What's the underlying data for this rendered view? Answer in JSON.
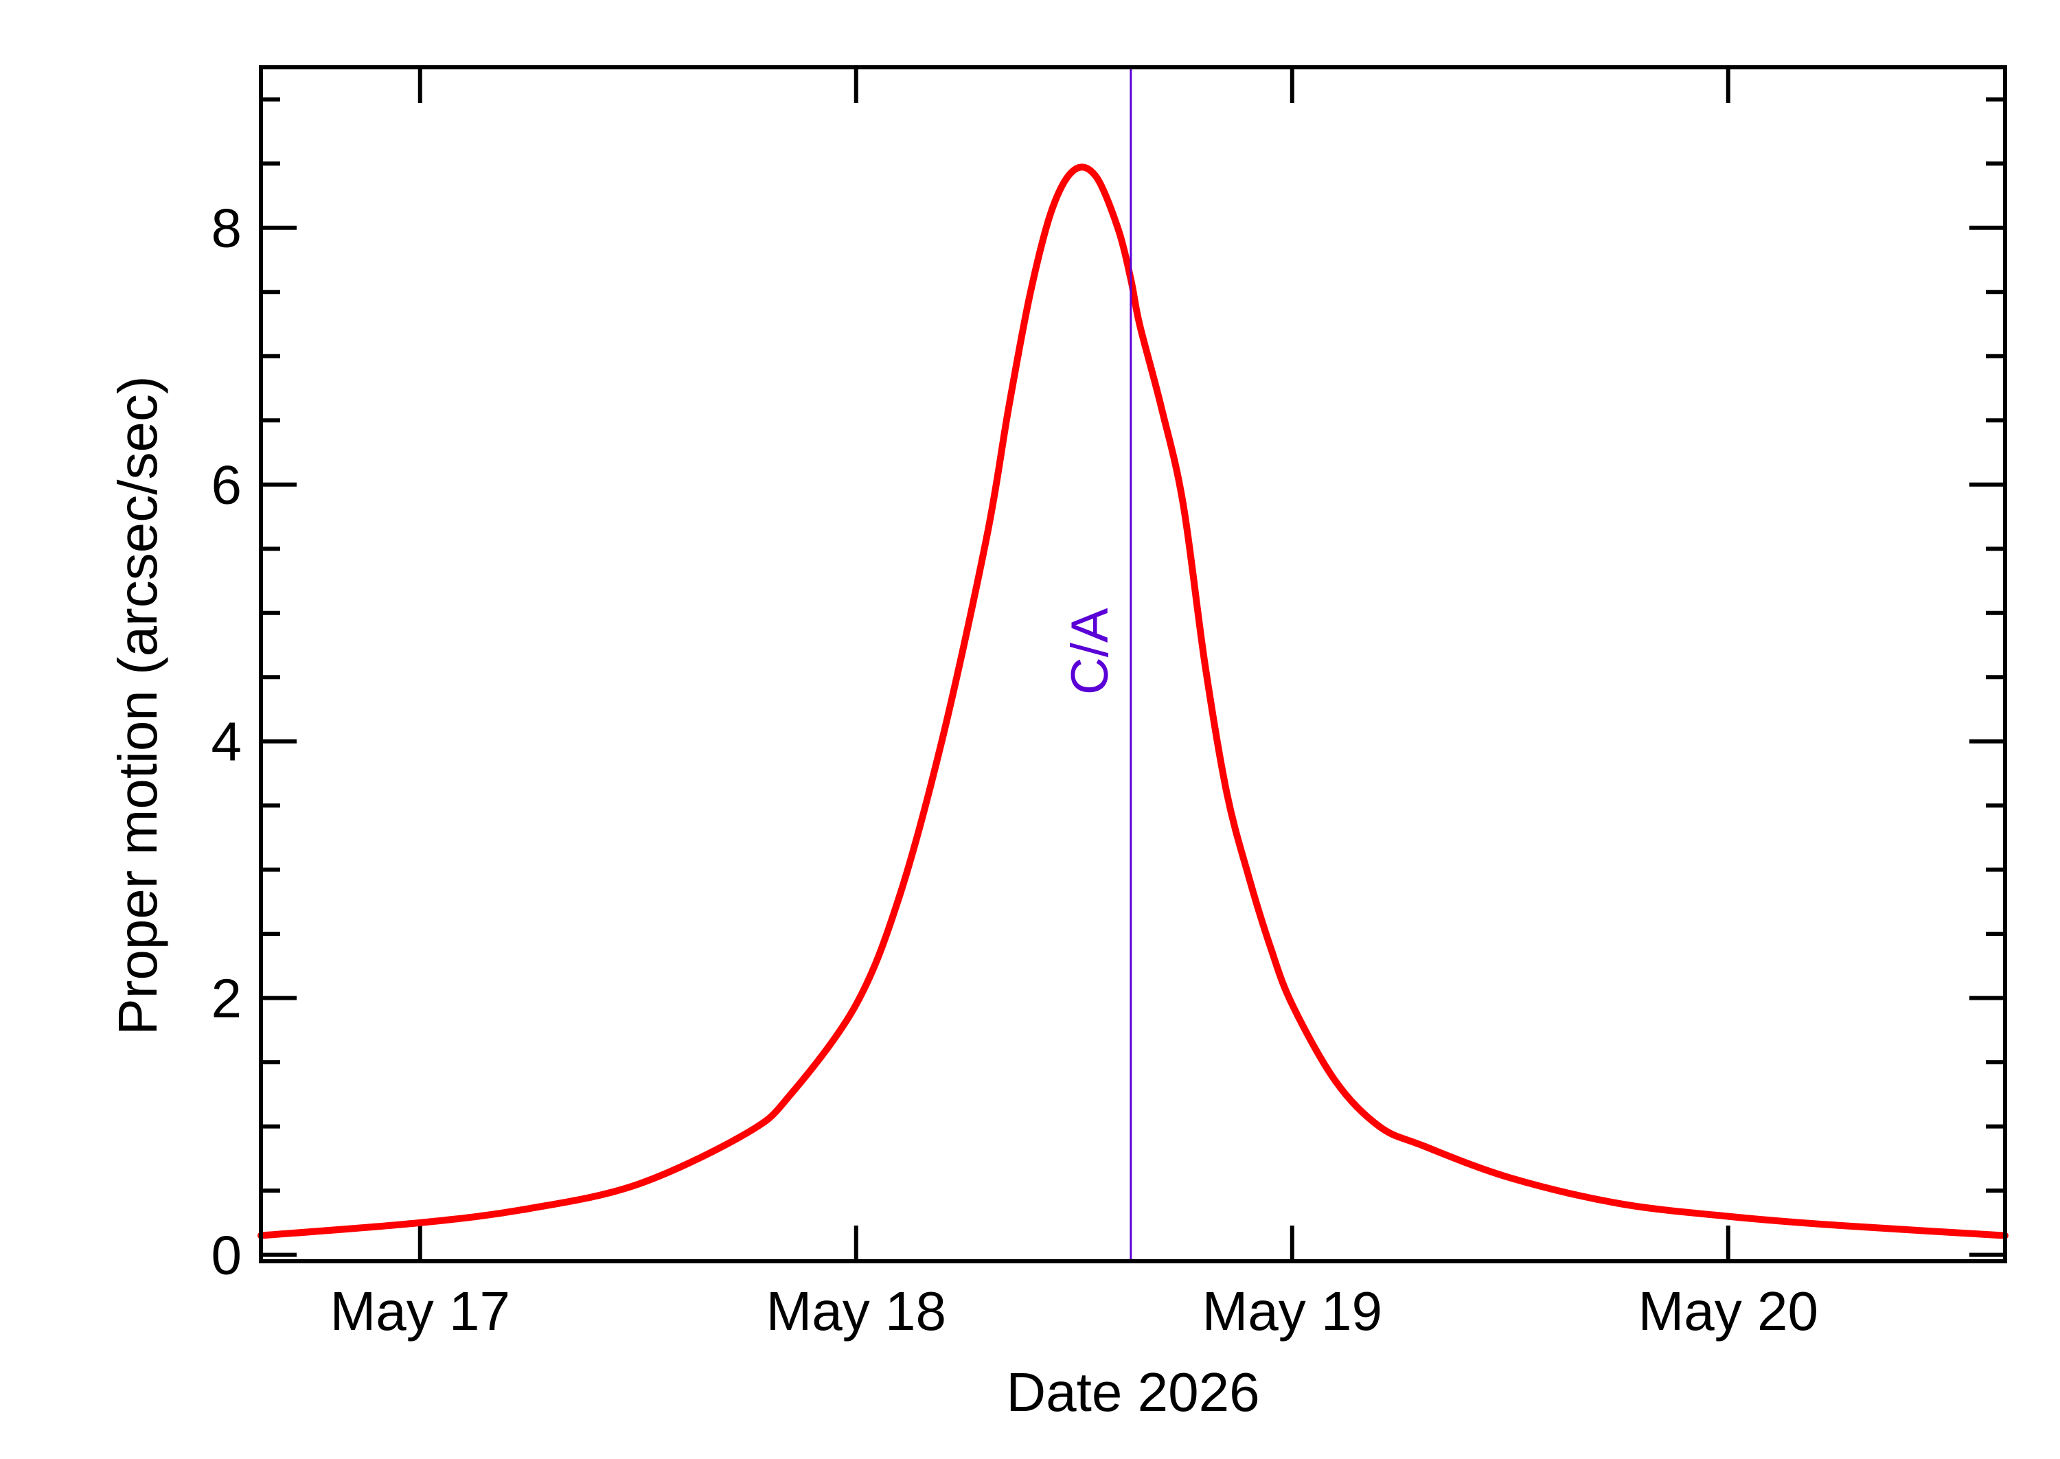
{
  "chart_data": {
    "type": "line",
    "xlabel": "Date 2026",
    "ylabel": "Proper motion (arcsec/sec)",
    "x_ticks": [
      {
        "label": "May 17",
        "x": 17.0
      },
      {
        "label": "May 18",
        "x": 18.0
      },
      {
        "label": "May 19",
        "x": 19.0
      },
      {
        "label": "May 20",
        "x": 20.0
      }
    ],
    "y_ticks": [
      {
        "label": "0",
        "y": 0
      },
      {
        "label": "2",
        "y": 2
      },
      {
        "label": "4",
        "y": 4
      },
      {
        "label": "6",
        "y": 6
      },
      {
        "label": "8",
        "y": 8
      }
    ],
    "xlim": [
      16.635,
      20.635
    ],
    "ylim": [
      -0.05,
      9.25
    ],
    "grid": false,
    "series": [
      {
        "color": "#ff0000",
        "x": [
          16.635,
          17.0,
          17.25,
          17.5,
          17.75,
          17.85,
          18.0,
          18.1,
          18.2,
          18.3,
          18.35,
          18.4,
          18.45,
          18.5,
          18.55,
          18.6,
          18.63,
          18.65,
          18.7,
          18.75,
          18.8,
          18.85,
          18.9,
          18.95,
          19.0,
          19.1,
          19.2,
          19.3,
          19.5,
          19.75,
          20.0,
          20.25,
          20.635
        ],
        "y": [
          0.15,
          0.25,
          0.36,
          0.55,
          0.95,
          1.25,
          1.95,
          2.8,
          4.05,
          5.6,
          6.6,
          7.5,
          8.15,
          8.45,
          8.4,
          8.0,
          7.6,
          7.25,
          6.6,
          5.85,
          4.6,
          3.6,
          2.95,
          2.4,
          1.95,
          1.35,
          1.0,
          0.85,
          0.6,
          0.4,
          0.3,
          0.23,
          0.15
        ]
      }
    ],
    "annotations": [
      {
        "label": "C/A",
        "x": 18.63,
        "color": "#5a00d6"
      }
    ]
  }
}
